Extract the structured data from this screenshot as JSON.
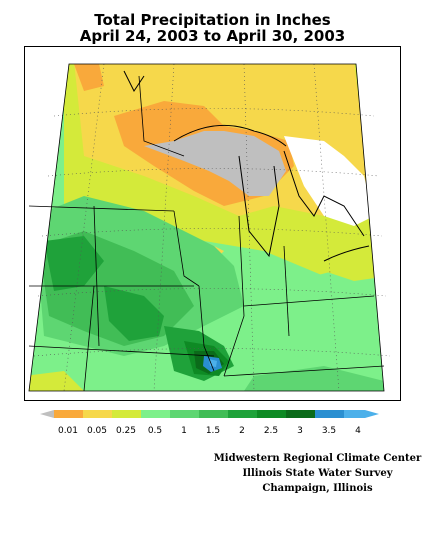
{
  "title": {
    "line1": "Total Precipitation in Inches",
    "line2": "April 24, 2003 to April 30, 2003"
  },
  "legend": {
    "items": [
      {
        "label": "0.01",
        "color": "#f9a93b"
      },
      {
        "label": "0.05",
        "color": "#f6d84b"
      },
      {
        "label": "0.25",
        "color": "#d4ea3a"
      },
      {
        "label": "0.5",
        "color": "#7df08a"
      },
      {
        "label": "1",
        "color": "#5ed672"
      },
      {
        "label": "1.5",
        "color": "#41bd56"
      },
      {
        "label": "2",
        "color": "#1fa23a"
      },
      {
        "label": "2.5",
        "color": "#0e8a24"
      },
      {
        "label": "3",
        "color": "#0b6b1a"
      },
      {
        "label": "3.5",
        "color": "#2a8fd1"
      },
      {
        "label": "4",
        "color": "#4cb0ea"
      }
    ],
    "below_min_color": "#bfbfbf"
  },
  "credits": {
    "line1": "Midwestern Regional Climate Center",
    "line2": "Illinois State Water Survey",
    "line3": "Champaign, Illinois"
  }
}
